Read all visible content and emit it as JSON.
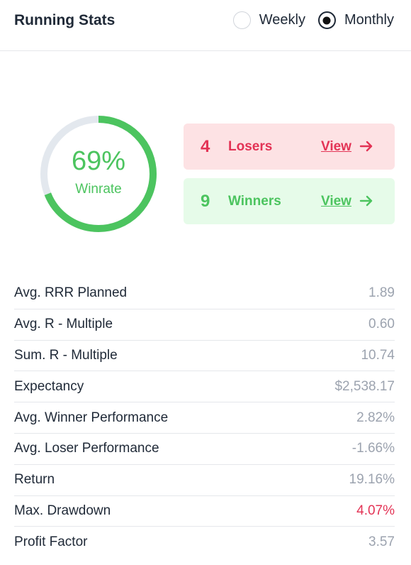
{
  "header": {
    "title": "Running Stats",
    "period_options": [
      {
        "label": "Weekly",
        "selected": false
      },
      {
        "label": "Monthly",
        "selected": true
      }
    ]
  },
  "winrate": {
    "percent": 69,
    "percent_text": "69%",
    "label": "Winrate",
    "colors": {
      "filled": "#4cc45f",
      "track": "#e3e8ee"
    }
  },
  "results": {
    "losers": {
      "count": "4",
      "label": "Losers",
      "link": "View",
      "icon": "arrow-right-icon",
      "color": "#e33355",
      "background": "#fde2e4"
    },
    "winners": {
      "count": "9",
      "label": "Winners",
      "link": "View",
      "icon": "arrow-right-icon",
      "color": "#4cc45f",
      "background": "#e6fbe9"
    }
  },
  "stats": [
    {
      "label": "Avg. RRR Planned",
      "value": "1.89"
    },
    {
      "label": "Avg. R - Multiple",
      "value": "0.60"
    },
    {
      "label": "Sum. R - Multiple",
      "value": "10.74"
    },
    {
      "label": "Expectancy",
      "value": "$2,538.17"
    },
    {
      "label": "Avg. Winner Performance",
      "value": "2.82%"
    },
    {
      "label": "Avg. Loser Performance",
      "value": "-1.66%"
    },
    {
      "label": "Return",
      "value": "19.16%"
    },
    {
      "label": "Max. Drawdown",
      "value": "4.07%",
      "highlight": true
    },
    {
      "label": "Profit Factor",
      "value": "3.57"
    }
  ]
}
